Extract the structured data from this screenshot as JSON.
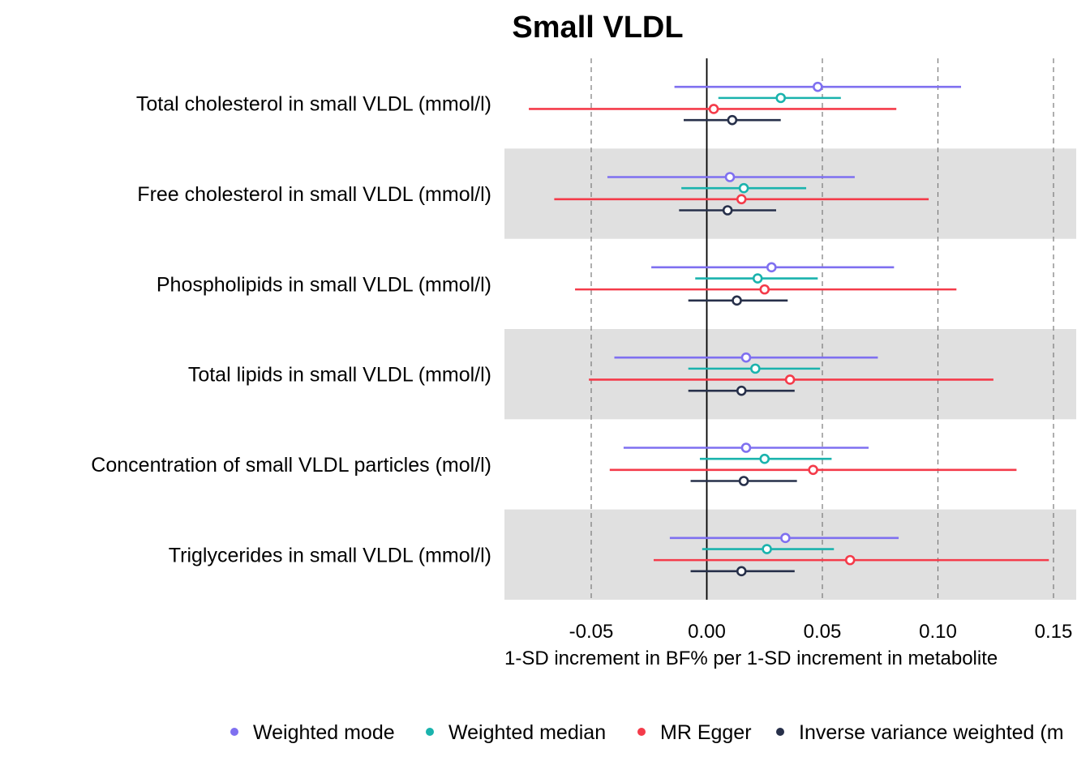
{
  "chart_data": {
    "type": "forest",
    "title": "Small VLDL",
    "xlabel": "1-SD increment in BF% per 1-SD increment in metabolite",
    "xlim": [
      -0.088,
      0.16
    ],
    "x_ticks": [
      -0.05,
      0.0,
      0.05,
      0.1,
      0.15
    ],
    "x_tick_labels": [
      "-0.05",
      "0.00",
      "0.05",
      "0.10",
      "0.15"
    ],
    "grid": "dashed vertical lines at ticks except zero; solid line at zero",
    "row_shading": "alternating grey bands (rows 2, 4, 6)",
    "legend_position": "bottom",
    "categories": [
      "Total cholesterol in small VLDL (mmol/l)",
      "Free cholesterol in small VLDL (mmol/l)",
      "Phospholipids in small VLDL (mmol/l)",
      "Total lipids in small VLDL (mmol/l)",
      "Concentration of small VLDL particles (mol/l)",
      "Triglycerides in small VLDL (mmol/l)"
    ],
    "series": [
      {
        "name": "Weighted mode",
        "color": "#7f70f0",
        "estimates": [
          0.048,
          0.01,
          0.028,
          0.017,
          0.017,
          0.034
        ],
        "lower": [
          -0.014,
          -0.043,
          -0.024,
          -0.04,
          -0.036,
          -0.016
        ],
        "upper": [
          0.11,
          0.064,
          0.081,
          0.074,
          0.07,
          0.083
        ]
      },
      {
        "name": "Weighted median",
        "color": "#1ab3ad",
        "estimates": [
          0.032,
          0.016,
          0.022,
          0.021,
          0.025,
          0.026
        ],
        "lower": [
          0.005,
          -0.011,
          -0.005,
          -0.008,
          -0.003,
          -0.002
        ],
        "upper": [
          0.058,
          0.043,
          0.048,
          0.049,
          0.054,
          0.055
        ]
      },
      {
        "name": "MR Egger",
        "color": "#f43b4a",
        "estimates": [
          0.003,
          0.015,
          0.025,
          0.036,
          0.046,
          0.062
        ],
        "lower": [
          -0.077,
          -0.066,
          -0.057,
          -0.051,
          -0.042,
          -0.023
        ],
        "upper": [
          0.082,
          0.096,
          0.108,
          0.124,
          0.134,
          0.148
        ]
      },
      {
        "name": "Inverse variance weighted (multiplicative random effects)",
        "color": "#27304a",
        "estimates": [
          0.011,
          0.009,
          0.013,
          0.015,
          0.016,
          0.015
        ],
        "lower": [
          -0.01,
          -0.012,
          -0.008,
          -0.008,
          -0.007,
          -0.007
        ],
        "upper": [
          0.032,
          0.03,
          0.035,
          0.038,
          0.039,
          0.038
        ]
      }
    ],
    "legend_labels": [
      "Weighted mode",
      "Weighted median",
      "MR Egger",
      "Inverse variance weighted (m"
    ]
  }
}
